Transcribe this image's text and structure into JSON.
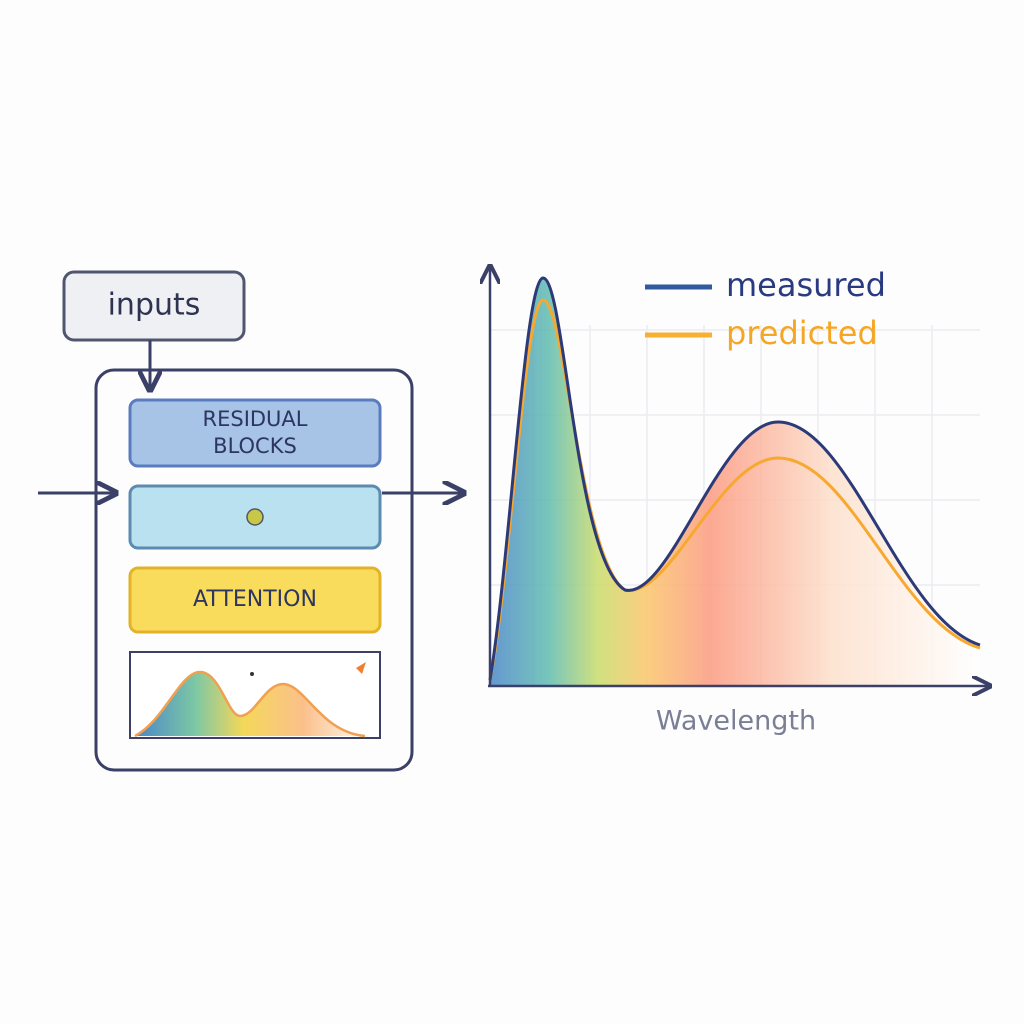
{
  "inputs_box": {
    "label": "inputs"
  },
  "blocks": [
    {
      "lines": [
        "RESIDUAL",
        "BLOCKS"
      ]
    },
    {
      "lines": [
        "ATTENTION"
      ]
    }
  ],
  "chart": {
    "legend": [
      "measured",
      "predicted"
    ],
    "x_axis_label": "Wavelength"
  }
}
